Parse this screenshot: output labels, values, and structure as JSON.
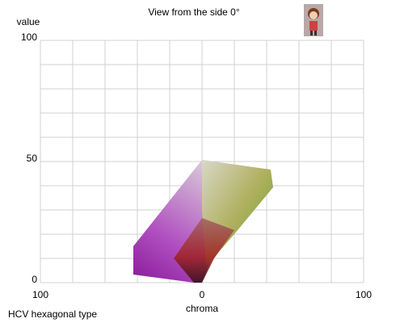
{
  "chart_data": {
    "type": "scatter",
    "title": "View from the side 0°",
    "xlabel": "chroma",
    "ylabel": "value",
    "caption": "HCV hexagonal type",
    "xlim": [
      -100,
      100
    ],
    "ylim": [
      0,
      100
    ],
    "xticks": [
      {
        "value": -100,
        "label": "100"
      },
      0,
      100
    ],
    "yticks": [
      0,
      50,
      100
    ],
    "xgrid": [
      -100,
      -80,
      -60,
      -40,
      -20,
      0,
      20,
      40,
      60,
      80,
      100
    ],
    "ygrid": [
      0,
      10,
      20,
      30,
      40,
      50,
      60,
      70,
      80,
      90,
      100
    ],
    "grid": true
  }
}
